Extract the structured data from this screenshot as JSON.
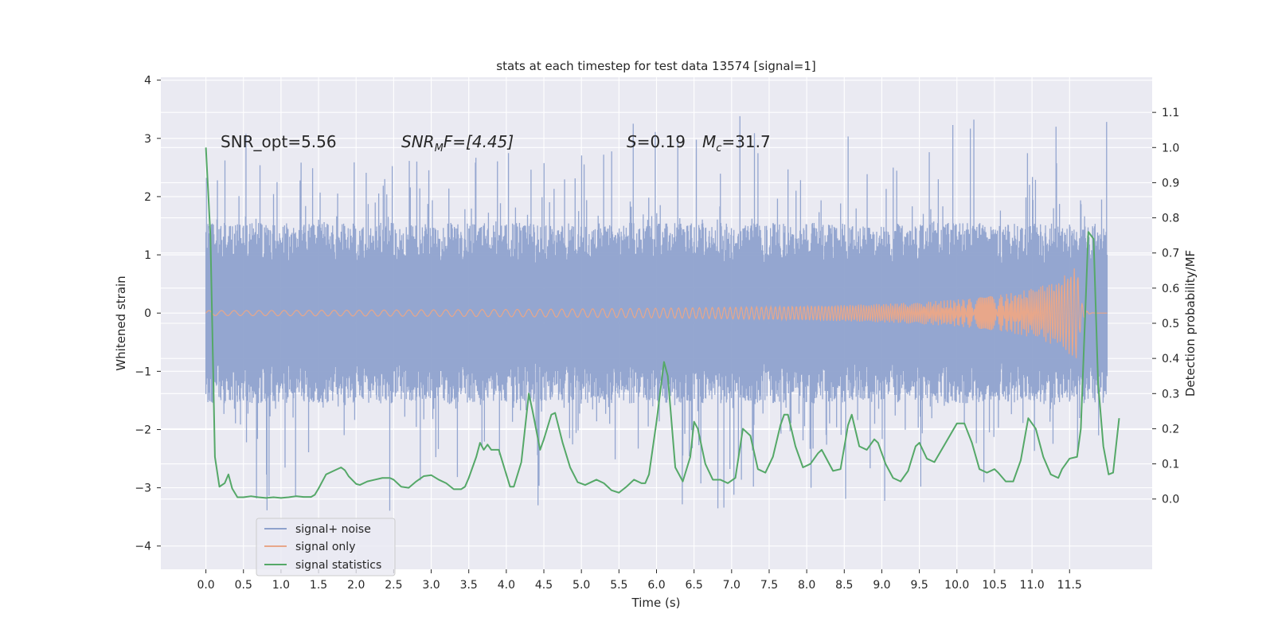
{
  "chart_data": {
    "type": "line",
    "title": "stats at each timestep for test data 13574 [signal=1]",
    "xlabel": "Time (s)",
    "ylabel": "Whitened strain",
    "ylabel_right": "Detection probability/MF",
    "xlim": [
      -0.6,
      12.6
    ],
    "ylim": [
      -4.4,
      4.05
    ],
    "ylim_right": [
      -0.2,
      1.2
    ],
    "x_ticks": [
      0.0,
      0.5,
      1.0,
      1.5,
      2.0,
      2.5,
      3.0,
      3.5,
      4.0,
      4.5,
      5.0,
      5.5,
      6.0,
      6.5,
      7.0,
      7.5,
      8.0,
      8.5,
      9.0,
      9.5,
      10.0,
      10.5,
      11.0,
      11.5
    ],
    "x_tick_labels": [
      "0.0",
      "0.5",
      "1.0",
      "1.5",
      "2.0",
      "2.5",
      "3.0",
      "3.5",
      "4.0",
      "4.5",
      "5.0",
      "5.5",
      "6.0",
      "6.5",
      "7.0",
      "7.5",
      "8.0",
      "8.5",
      "9.0",
      "9.5",
      "10.0",
      "10.5",
      "11.0",
      "11.5"
    ],
    "y_ticks": [
      -4,
      -3,
      -2,
      -1,
      0,
      1,
      2,
      3,
      4
    ],
    "y_tick_labels": [
      "−4",
      "−3",
      "−2",
      "−1",
      "0",
      "1",
      "2",
      "3",
      "4"
    ],
    "y_right_ticks": [
      0.0,
      0.1,
      0.2,
      0.3,
      0.4,
      0.5,
      0.6,
      0.7,
      0.8,
      0.9,
      1.0,
      1.1
    ],
    "y_right_tick_labels": [
      "0.0",
      "0.1",
      "0.2",
      "0.3",
      "0.4",
      "0.5",
      "0.6",
      "0.7",
      "0.8",
      "0.9",
      "1.0",
      "1.1"
    ],
    "annotations": {
      "snr_opt": "SNR_opt=5.56",
      "snr_mf_main": "SNR",
      "snr_mf_sub": "M",
      "snr_mf_tail": "F=[4.45]",
      "s_var": "S",
      "s_val": "=0.19",
      "mc_var": "M",
      "mc_sub": "c",
      "mc_val": "=31.7"
    },
    "grid": true,
    "legend_position": "lower-left",
    "series": [
      {
        "name": "signal+ noise",
        "color": "#8fa2cd",
        "axis": "left",
        "x_range": [
          0.0,
          12.0
        ],
        "baseline_amplitude": 1.0,
        "spike_max": 3.7,
        "spike_min": -3.65
      },
      {
        "name": "signal only",
        "color": "#e8a78a",
        "axis": "left",
        "x_range": [
          0.0,
          12.0
        ],
        "peak_time": 11.6,
        "peak_amplitude": 0.9
      },
      {
        "name": "signal statistics",
        "color": "#55a868",
        "axis": "right",
        "points": [
          [
            0.0,
            1.0
          ],
          [
            0.06,
            0.75
          ],
          [
            0.12,
            0.12
          ],
          [
            0.18,
            0.035
          ],
          [
            0.25,
            0.045
          ],
          [
            0.3,
            0.07
          ],
          [
            0.35,
            0.03
          ],
          [
            0.42,
            0.005
          ],
          [
            0.5,
            0.005
          ],
          [
            0.6,
            0.008
          ],
          [
            0.7,
            0.005
          ],
          [
            0.8,
            0.003
          ],
          [
            0.9,
            0.005
          ],
          [
            1.0,
            0.003
          ],
          [
            1.1,
            0.005
          ],
          [
            1.2,
            0.008
          ],
          [
            1.3,
            0.006
          ],
          [
            1.4,
            0.006
          ],
          [
            1.45,
            0.012
          ],
          [
            1.5,
            0.03
          ],
          [
            1.6,
            0.07
          ],
          [
            1.7,
            0.08
          ],
          [
            1.8,
            0.09
          ],
          [
            1.85,
            0.082
          ],
          [
            1.9,
            0.065
          ],
          [
            2.0,
            0.043
          ],
          [
            2.05,
            0.04
          ],
          [
            2.15,
            0.05
          ],
          [
            2.25,
            0.055
          ],
          [
            2.35,
            0.06
          ],
          [
            2.45,
            0.06
          ],
          [
            2.5,
            0.055
          ],
          [
            2.6,
            0.035
          ],
          [
            2.7,
            0.032
          ],
          [
            2.8,
            0.05
          ],
          [
            2.9,
            0.065
          ],
          [
            3.0,
            0.068
          ],
          [
            3.1,
            0.055
          ],
          [
            3.2,
            0.045
          ],
          [
            3.3,
            0.028
          ],
          [
            3.4,
            0.028
          ],
          [
            3.45,
            0.035
          ],
          [
            3.5,
            0.06
          ],
          [
            3.6,
            0.12
          ],
          [
            3.65,
            0.16
          ],
          [
            3.7,
            0.14
          ],
          [
            3.75,
            0.155
          ],
          [
            3.8,
            0.14
          ],
          [
            3.9,
            0.14
          ],
          [
            4.0,
            0.07
          ],
          [
            4.05,
            0.035
          ],
          [
            4.1,
            0.035
          ],
          [
            4.2,
            0.105
          ],
          [
            4.3,
            0.3
          ],
          [
            4.35,
            0.25
          ],
          [
            4.45,
            0.14
          ],
          [
            4.5,
            0.17
          ],
          [
            4.6,
            0.24
          ],
          [
            4.65,
            0.245
          ],
          [
            4.75,
            0.16
          ],
          [
            4.85,
            0.09
          ],
          [
            4.95,
            0.048
          ],
          [
            5.05,
            0.04
          ],
          [
            5.2,
            0.055
          ],
          [
            5.3,
            0.045
          ],
          [
            5.4,
            0.025
          ],
          [
            5.5,
            0.018
          ],
          [
            5.6,
            0.035
          ],
          [
            5.7,
            0.055
          ],
          [
            5.8,
            0.045
          ],
          [
            5.85,
            0.045
          ],
          [
            5.9,
            0.07
          ],
          [
            6.0,
            0.22
          ],
          [
            6.1,
            0.39
          ],
          [
            6.15,
            0.35
          ],
          [
            6.25,
            0.09
          ],
          [
            6.35,
            0.05
          ],
          [
            6.45,
            0.12
          ],
          [
            6.5,
            0.22
          ],
          [
            6.55,
            0.2
          ],
          [
            6.65,
            0.1
          ],
          [
            6.75,
            0.055
          ],
          [
            6.85,
            0.055
          ],
          [
            6.95,
            0.045
          ],
          [
            7.05,
            0.06
          ],
          [
            7.15,
            0.2
          ],
          [
            7.25,
            0.18
          ],
          [
            7.35,
            0.085
          ],
          [
            7.45,
            0.075
          ],
          [
            7.55,
            0.12
          ],
          [
            7.65,
            0.21
          ],
          [
            7.7,
            0.24
          ],
          [
            7.75,
            0.24
          ],
          [
            7.85,
            0.15
          ],
          [
            7.95,
            0.09
          ],
          [
            8.05,
            0.1
          ],
          [
            8.15,
            0.13
          ],
          [
            8.2,
            0.14
          ],
          [
            8.25,
            0.12
          ],
          [
            8.35,
            0.08
          ],
          [
            8.45,
            0.085
          ],
          [
            8.55,
            0.21
          ],
          [
            8.6,
            0.24
          ],
          [
            8.7,
            0.15
          ],
          [
            8.8,
            0.14
          ],
          [
            8.9,
            0.17
          ],
          [
            8.95,
            0.16
          ],
          [
            9.05,
            0.1
          ],
          [
            9.15,
            0.06
          ],
          [
            9.25,
            0.05
          ],
          [
            9.35,
            0.08
          ],
          [
            9.45,
            0.15
          ],
          [
            9.5,
            0.16
          ],
          [
            9.6,
            0.115
          ],
          [
            9.7,
            0.105
          ],
          [
            9.85,
            0.16
          ],
          [
            10.0,
            0.215
          ],
          [
            10.1,
            0.215
          ],
          [
            10.2,
            0.16
          ],
          [
            10.3,
            0.085
          ],
          [
            10.4,
            0.075
          ],
          [
            10.5,
            0.085
          ],
          [
            10.55,
            0.075
          ],
          [
            10.65,
            0.05
          ],
          [
            10.75,
            0.05
          ],
          [
            10.85,
            0.11
          ],
          [
            10.9,
            0.17
          ],
          [
            10.95,
            0.23
          ],
          [
            11.05,
            0.2
          ],
          [
            11.15,
            0.12
          ],
          [
            11.25,
            0.07
          ],
          [
            11.35,
            0.06
          ],
          [
            11.4,
            0.085
          ],
          [
            11.5,
            0.115
          ],
          [
            11.6,
            0.12
          ],
          [
            11.65,
            0.2
          ],
          [
            11.75,
            0.76
          ],
          [
            11.82,
            0.74
          ],
          [
            11.88,
            0.33
          ],
          [
            11.95,
            0.15
          ],
          [
            12.02,
            0.07
          ],
          [
            12.08,
            0.075
          ],
          [
            12.16,
            0.23
          ]
        ]
      }
    ]
  }
}
